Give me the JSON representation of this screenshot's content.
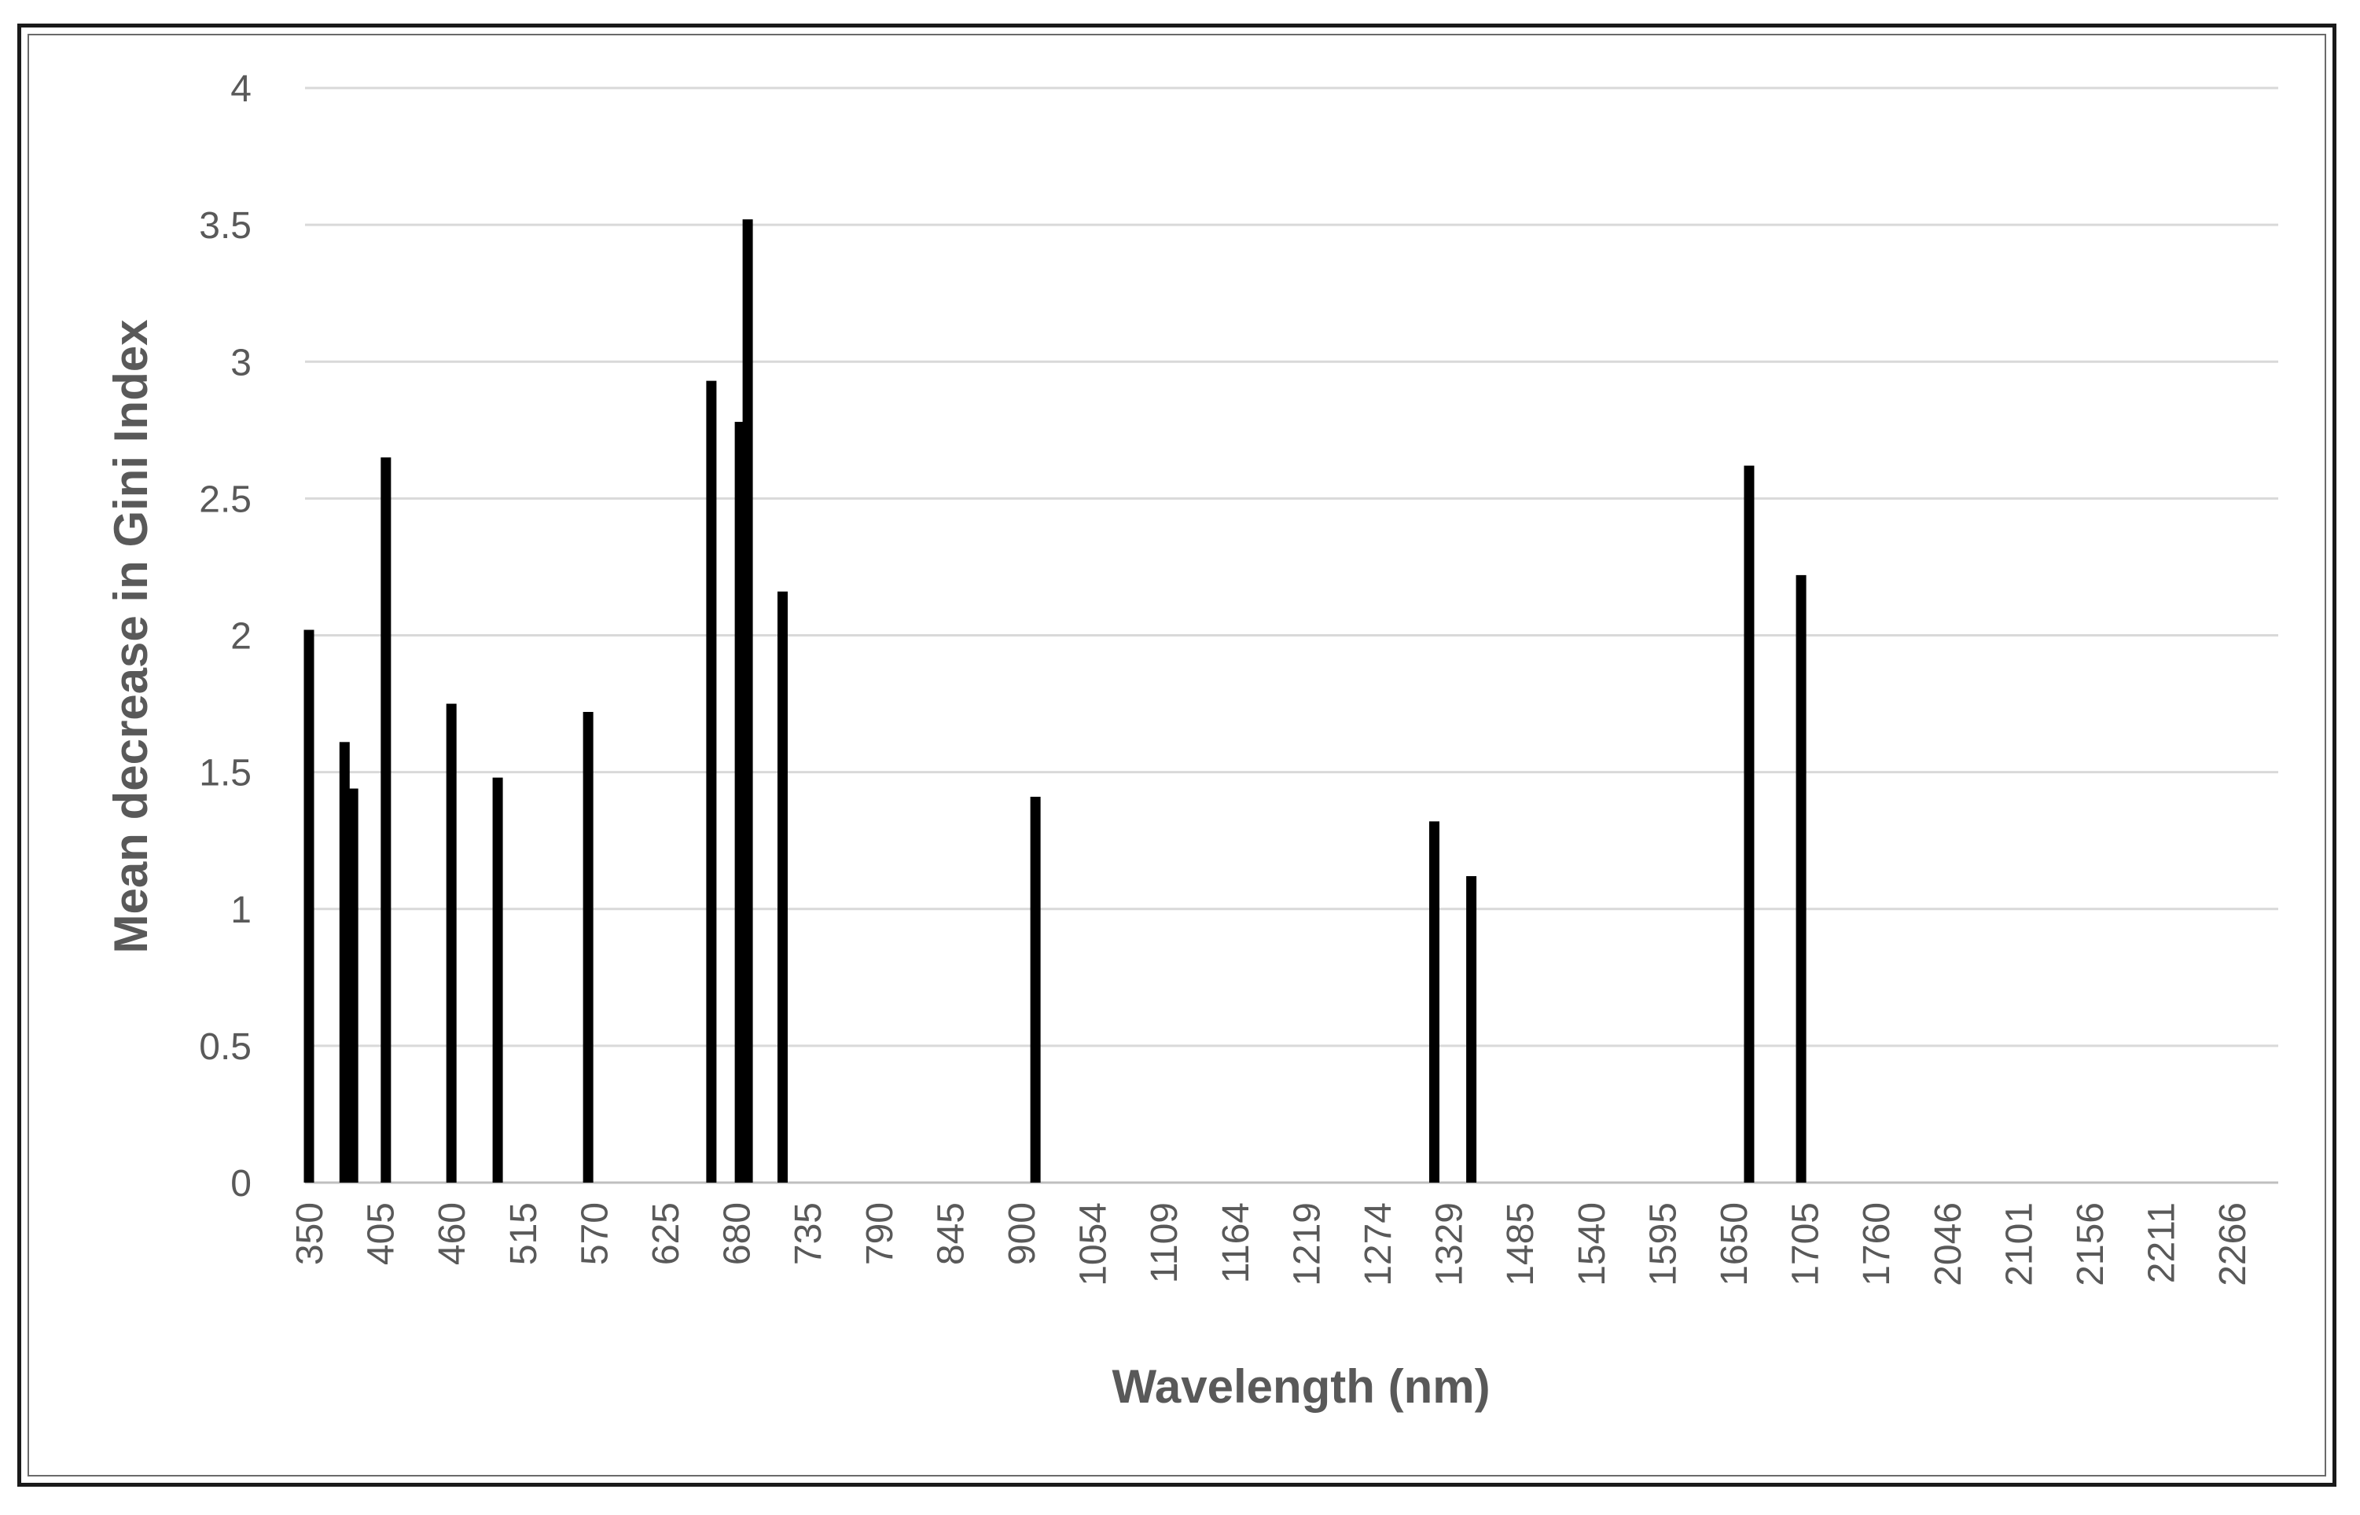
{
  "chart_data": {
    "type": "bar",
    "title": "",
    "xlabel": "Wavelength (nm)",
    "ylabel": "Mean decrease in Gini Index",
    "ylim": [
      0,
      4
    ],
    "y_ticks": [
      "0",
      "0.5",
      "1",
      "1.5",
      "2",
      "2.5",
      "3",
      "3.5",
      "4"
    ],
    "x_tick_labels": [
      "350",
      "405",
      "460",
      "515",
      "570",
      "625",
      "680",
      "735",
      "790",
      "845",
      "900",
      "1054",
      "1109",
      "1164",
      "1219",
      "1274",
      "1329",
      "1485",
      "1540",
      "1595",
      "1650",
      "1705",
      "1760",
      "2046",
      "2101",
      "2156",
      "2211",
      "2266"
    ],
    "grid": true,
    "bar_color": "#000000",
    "series": [
      {
        "name": "Mean decrease in Gini Index",
        "points": [
          {
            "slot": 0.0,
            "value": 2.02
          },
          {
            "slot": 0.5,
            "value": 1.61
          },
          {
            "slot": 0.62,
            "value": 1.44
          },
          {
            "slot": 1.08,
            "value": 2.65
          },
          {
            "slot": 2.0,
            "value": 1.75
          },
          {
            "slot": 2.65,
            "value": 1.48
          },
          {
            "slot": 3.92,
            "value": 1.72
          },
          {
            "slot": 5.65,
            "value": 2.93
          },
          {
            "slot": 6.05,
            "value": 2.78
          },
          {
            "slot": 6.16,
            "value": 3.52
          },
          {
            "slot": 6.65,
            "value": 2.16
          },
          {
            "slot": 10.2,
            "value": 1.41
          },
          {
            "slot": 15.8,
            "value": 1.32
          },
          {
            "slot": 16.32,
            "value": 1.12
          },
          {
            "slot": 20.22,
            "value": 2.62
          },
          {
            "slot": 20.95,
            "value": 2.22
          }
        ]
      }
    ]
  }
}
